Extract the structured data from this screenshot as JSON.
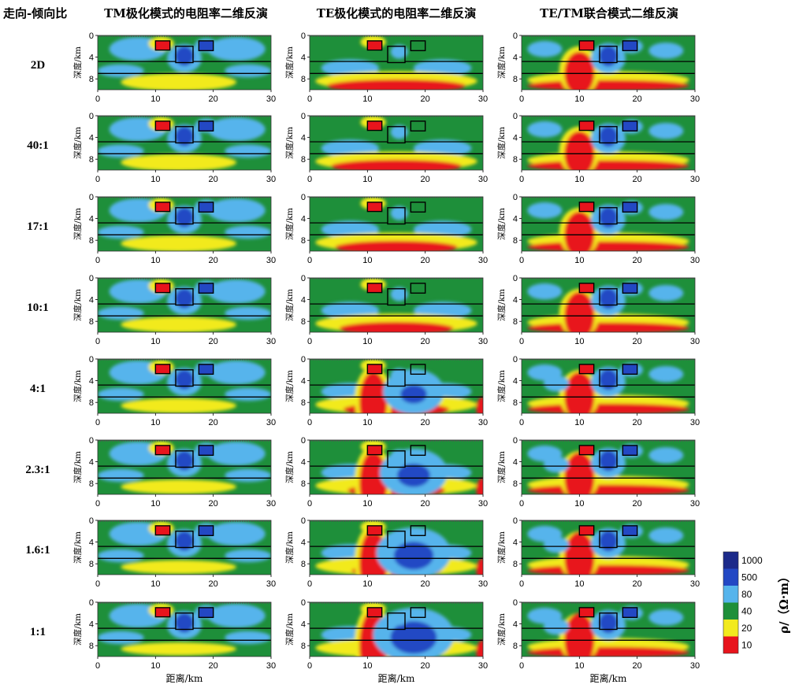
{
  "chart_data": {
    "type": "heatmap",
    "corner_label": "走向-倾向比",
    "columns": [
      {
        "title": "TM极化模式的电阻率二维反演"
      },
      {
        "title": "TE极化模式的电阻率二维反演"
      },
      {
        "title": "TE/TM联合模式二维反演"
      }
    ],
    "rows": [
      "2D",
      "40:1",
      "17:1",
      "10:1",
      "4:1",
      "2.3:1",
      "1.6:1",
      "1:1"
    ],
    "ylabel": "深度/km",
    "xlabel": "距离/km",
    "xlim": [
      0,
      30
    ],
    "ylim": [
      0,
      10
    ],
    "xticks": [
      "0",
      "10",
      "20",
      "30"
    ],
    "yticks": [
      "0",
      "4",
      "8"
    ],
    "colorbar": {
      "label": "ρ/（Ω·m）",
      "entries": [
        {
          "value": "1000",
          "color": "#1c2a8a"
        },
        {
          "value": "500",
          "color": "#2348c4"
        },
        {
          "value": "80",
          "color": "#56b4ec"
        },
        {
          "value": "40",
          "color": "#1e8f3a"
        },
        {
          "value": "20",
          "color": "#f2ea1e"
        },
        {
          "value": "10",
          "color": "#e8141c"
        }
      ]
    },
    "model_interfaces_km": [
      4.8,
      7.0
    ],
    "anomaly_bodies": [
      {
        "type": "conductor",
        "x_range_km": [
          10,
          12.5
        ],
        "depth_range_km": [
          1,
          2.7
        ]
      },
      {
        "type": "resistor",
        "x_range_km": [
          13.5,
          16.5
        ],
        "depth_range_km": [
          2,
          5
        ]
      },
      {
        "type": "resistor",
        "x_range_km": [
          17.5,
          20
        ],
        "depth_range_km": [
          1,
          2.8
        ]
      }
    ]
  }
}
